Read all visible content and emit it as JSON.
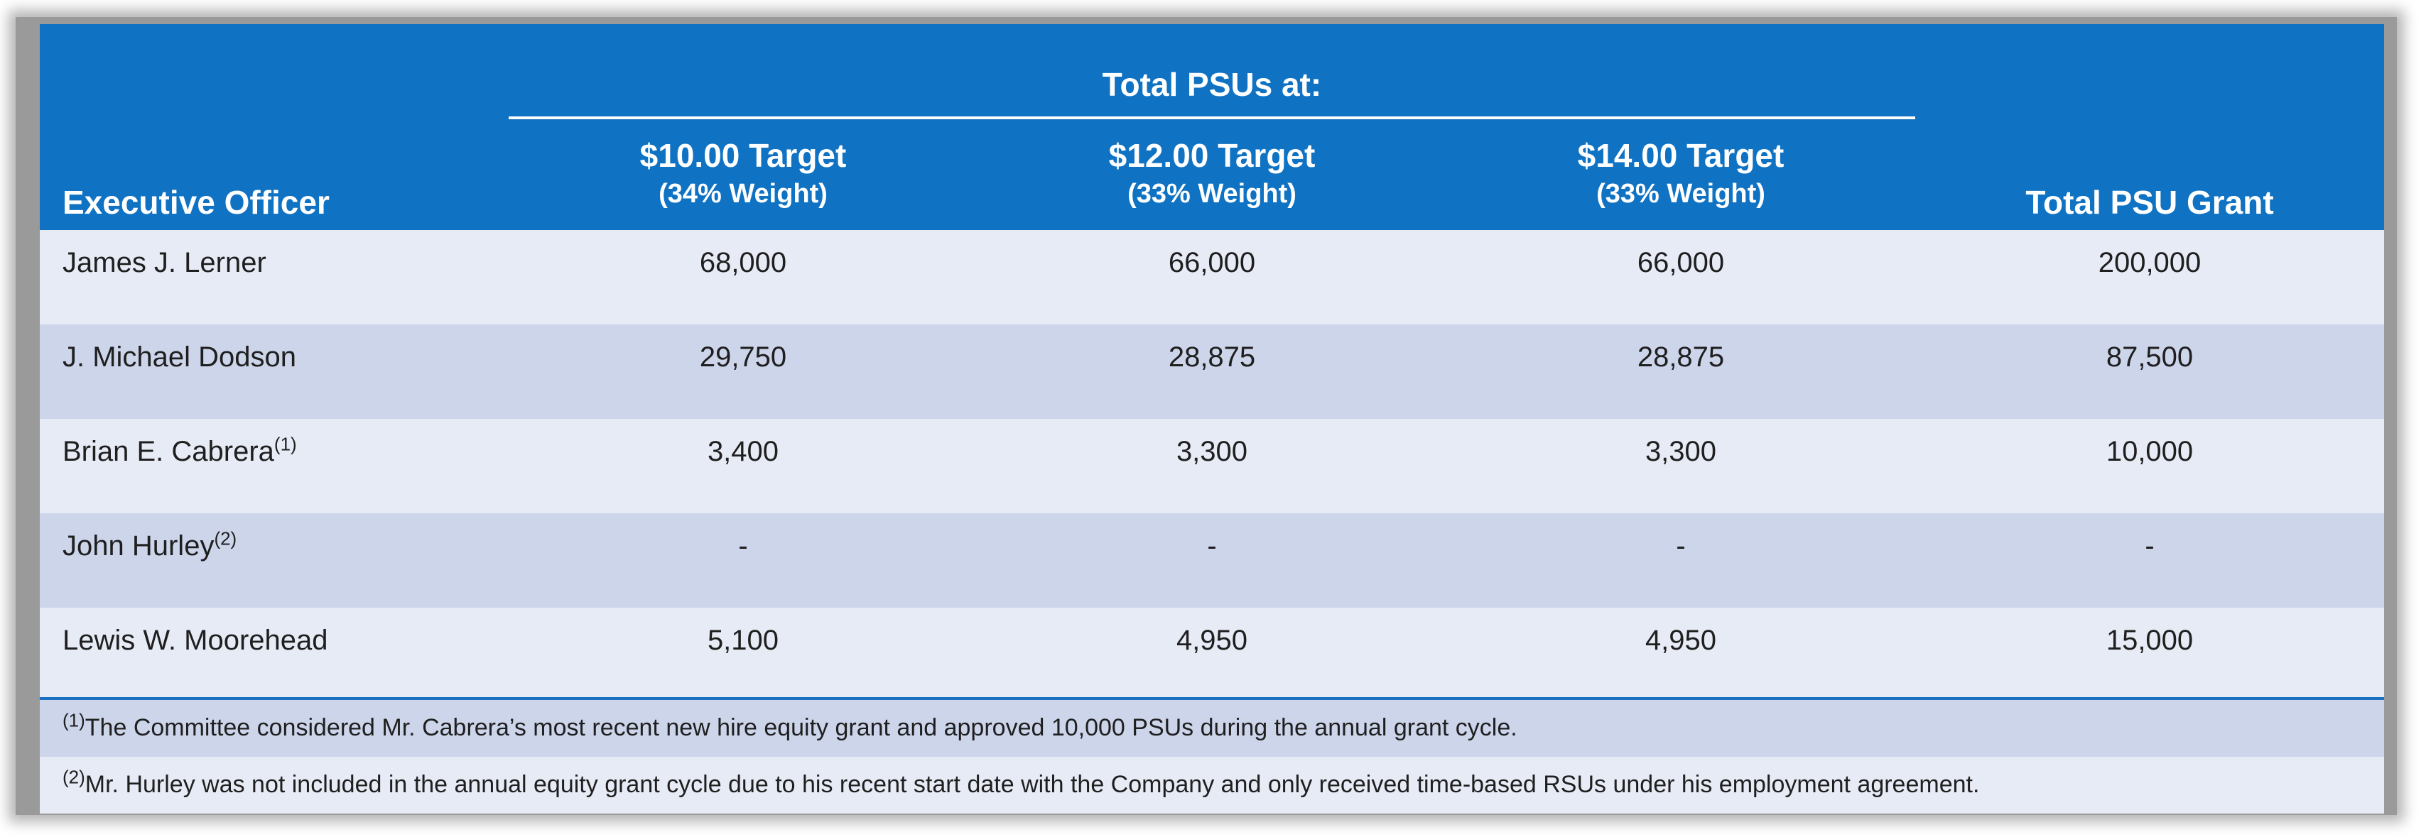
{
  "table": {
    "group_header": "Total PSUs at:",
    "col_exec": "Executive Officer",
    "col_total": "Total PSU Grant",
    "targets": [
      {
        "title": "$10.00 Target",
        "weight": "(34% Weight)"
      },
      {
        "title": "$12.00 Target",
        "weight": "(33% Weight)"
      },
      {
        "title": "$14.00 Target",
        "weight": "(33% Weight)"
      }
    ],
    "rows": [
      {
        "name": "James J. Lerner",
        "note": "",
        "values": [
          "68,000",
          "66,000",
          "66,000",
          "200,000"
        ]
      },
      {
        "name": "J. Michael Dodson",
        "note": "",
        "values": [
          "29,750",
          "28,875",
          "28,875",
          "87,500"
        ]
      },
      {
        "name": "Brian E. Cabrera",
        "note": "(1)",
        "values": [
          "3,400",
          "3,300",
          "3,300",
          "10,000"
        ]
      },
      {
        "name": "John Hurley",
        "note": "(2)",
        "values": [
          "-",
          "-",
          "-",
          "-"
        ]
      },
      {
        "name": "Lewis W. Moorehead",
        "note": "",
        "values": [
          "5,100",
          "4,950",
          "4,950",
          "15,000"
        ]
      }
    ]
  },
  "footnotes": [
    {
      "mark": "(1)",
      "text": "The Committee considered Mr. Cabrera’s most recent new hire equity grant and approved 10,000 PSUs during the annual grant cycle."
    },
    {
      "mark": "(2)",
      "text": "Mr. Hurley was not included in the annual equity grant cycle due to his recent start date with the Company and only received time-based RSUs under his employment agreement."
    }
  ],
  "colors": {
    "header": "#0f72c3",
    "row_light": "#e7ebf6",
    "row_dark": "#cdd5eb"
  }
}
